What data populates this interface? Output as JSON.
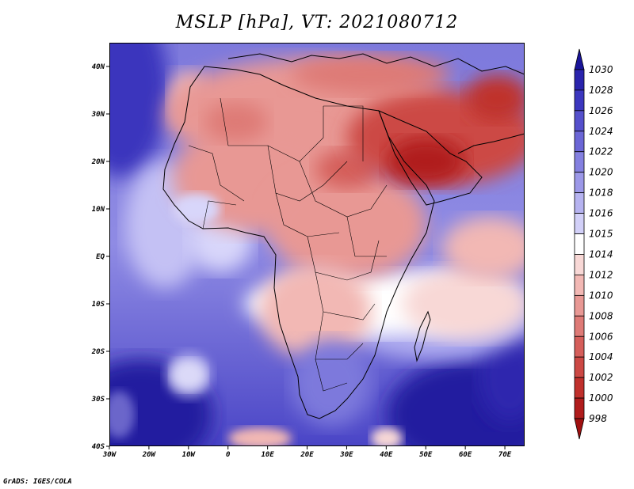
{
  "title": "MSLP [hPa], VT: 2021080712",
  "credit": "GrADS: IGES/COLA",
  "map": {
    "lon_range": [
      -30,
      75
    ],
    "lat_range": [
      -40,
      45
    ],
    "lat_ticks": [
      {
        "value": 40,
        "label": "40N"
      },
      {
        "value": 30,
        "label": "30N"
      },
      {
        "value": 20,
        "label": "20N"
      },
      {
        "value": 10,
        "label": "10N"
      },
      {
        "value": 0,
        "label": "EQ"
      },
      {
        "value": -10,
        "label": "10S"
      },
      {
        "value": -20,
        "label": "20S"
      },
      {
        "value": -30,
        "label": "30S"
      },
      {
        "value": -40,
        "label": "40S"
      }
    ],
    "lon_ticks": [
      {
        "value": -30,
        "label": "30W"
      },
      {
        "value": -20,
        "label": "20W"
      },
      {
        "value": -10,
        "label": "10W"
      },
      {
        "value": 0,
        "label": "0"
      },
      {
        "value": 10,
        "label": "10E"
      },
      {
        "value": 20,
        "label": "20E"
      },
      {
        "value": 30,
        "label": "30E"
      },
      {
        "value": 40,
        "label": "40E"
      },
      {
        "value": 50,
        "label": "50E"
      },
      {
        "value": 60,
        "label": "60E"
      },
      {
        "value": 70,
        "label": "70E"
      }
    ]
  },
  "colorbar": {
    "labels": [
      "1030",
      "1028",
      "1026",
      "1024",
      "1022",
      "1020",
      "1018",
      "1016",
      "1015",
      "1014",
      "1012",
      "1010",
      "1008",
      "1006",
      "1004",
      "1002",
      "1000",
      "998"
    ],
    "colors": [
      "#1a1499",
      "#2a24ad",
      "#3c37bf",
      "#5550cc",
      "#6b66d6",
      "#8480e0",
      "#9c98e8",
      "#b6b3f0",
      "#d2d0f8",
      "#ffffff",
      "#f8d8d6",
      "#f2b8b4",
      "#e89894",
      "#de7a76",
      "#d55e5a",
      "#cc4844",
      "#c0302c",
      "#b01c1c",
      "#a01010"
    ]
  }
}
